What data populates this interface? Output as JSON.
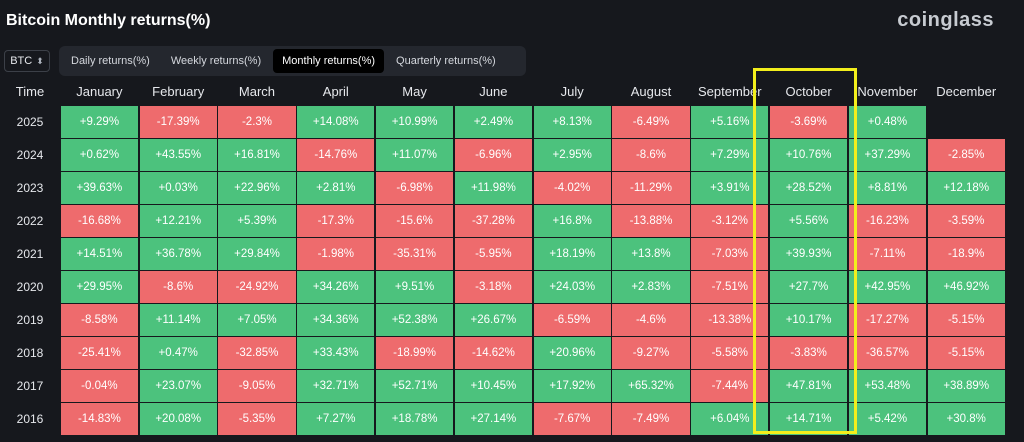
{
  "title": "Bitcoin Monthly returns(%)",
  "brand": "coinglass",
  "asset_selector": {
    "value": "BTC",
    "icon": "chevron-updown-icon"
  },
  "tabs": [
    {
      "label": "Daily returns(%)",
      "active": false
    },
    {
      "label": "Weekly returns(%)",
      "active": false
    },
    {
      "label": "Monthly returns(%)",
      "active": true
    },
    {
      "label": "Quarterly returns(%)",
      "active": false
    }
  ],
  "colors": {
    "positive": "#4cc27d",
    "negative": "#ee6b6d",
    "highlight": "#f2ee1c",
    "background": "#16181d"
  },
  "chart_data": {
    "type": "table",
    "title": "Bitcoin Monthly returns(%)",
    "row_header": "Time",
    "columns": [
      "January",
      "February",
      "March",
      "April",
      "May",
      "June",
      "July",
      "August",
      "September",
      "October",
      "November",
      "December"
    ],
    "highlighted_column": "October",
    "rows": [
      {
        "year": "2025",
        "values": [
          "+9.29%",
          "-17.39%",
          "-2.3%",
          "+14.08%",
          "+10.99%",
          "+2.49%",
          "+8.13%",
          "-6.49%",
          "+5.16%",
          "-3.69%",
          "+0.48%",
          ""
        ]
      },
      {
        "year": "2024",
        "values": [
          "+0.62%",
          "+43.55%",
          "+16.81%",
          "-14.76%",
          "+11.07%",
          "-6.96%",
          "+2.95%",
          "-8.6%",
          "+7.29%",
          "+10.76%",
          "+37.29%",
          "-2.85%"
        ]
      },
      {
        "year": "2023",
        "values": [
          "+39.63%",
          "+0.03%",
          "+22.96%",
          "+2.81%",
          "-6.98%",
          "+11.98%",
          "-4.02%",
          "-11.29%",
          "+3.91%",
          "+28.52%",
          "+8.81%",
          "+12.18%"
        ]
      },
      {
        "year": "2022",
        "values": [
          "-16.68%",
          "+12.21%",
          "+5.39%",
          "-17.3%",
          "-15.6%",
          "-37.28%",
          "+16.8%",
          "-13.88%",
          "-3.12%",
          "+5.56%",
          "-16.23%",
          "-3.59%"
        ]
      },
      {
        "year": "2021",
        "values": [
          "+14.51%",
          "+36.78%",
          "+29.84%",
          "-1.98%",
          "-35.31%",
          "-5.95%",
          "+18.19%",
          "+13.8%",
          "-7.03%",
          "+39.93%",
          "-7.11%",
          "-18.9%"
        ]
      },
      {
        "year": "2020",
        "values": [
          "+29.95%",
          "-8.6%",
          "-24.92%",
          "+34.26%",
          "+9.51%",
          "-3.18%",
          "+24.03%",
          "+2.83%",
          "-7.51%",
          "+27.7%",
          "+42.95%",
          "+46.92%"
        ]
      },
      {
        "year": "2019",
        "values": [
          "-8.58%",
          "+11.14%",
          "+7.05%",
          "+34.36%",
          "+52.38%",
          "+26.67%",
          "-6.59%",
          "-4.6%",
          "-13.38%",
          "+10.17%",
          "-17.27%",
          "-5.15%"
        ]
      },
      {
        "year": "2018",
        "values": [
          "-25.41%",
          "+0.47%",
          "-32.85%",
          "+33.43%",
          "-18.99%",
          "-14.62%",
          "+20.96%",
          "-9.27%",
          "-5.58%",
          "-3.83%",
          "-36.57%",
          "-5.15%"
        ]
      },
      {
        "year": "2017",
        "values": [
          "-0.04%",
          "+23.07%",
          "-9.05%",
          "+32.71%",
          "+52.71%",
          "+10.45%",
          "+17.92%",
          "+65.32%",
          "-7.44%",
          "+47.81%",
          "+53.48%",
          "+38.89%"
        ]
      },
      {
        "year": "2016",
        "values": [
          "-14.83%",
          "+20.08%",
          "-5.35%",
          "+7.27%",
          "+18.78%",
          "+27.14%",
          "-7.67%",
          "-7.49%",
          "+6.04%",
          "+14.71%",
          "+5.42%",
          "+30.8%"
        ]
      }
    ]
  }
}
